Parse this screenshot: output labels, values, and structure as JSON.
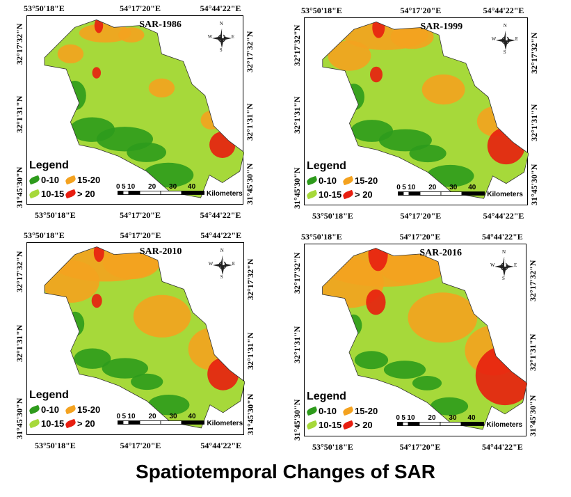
{
  "caption": "Spatiotemporal Changes of SAR",
  "coords": {
    "top_left": "53°50'18\"E",
    "top_mid": "54°17'20\"E",
    "top_right": "54°44'22\"E",
    "lat_top": "32°17'32\"N",
    "lat_mid": "32°1'31\"N",
    "lat_bot": "31°45'30\"N"
  },
  "legend": {
    "title": "Legend",
    "items": [
      {
        "label": "0-10",
        "color": "#2e9b1c"
      },
      {
        "label": "15-20",
        "color": "#f4a21f"
      },
      {
        "label": "10-15",
        "color": "#a6d93a"
      },
      {
        "label": "> 20",
        "color": "#e81e10"
      }
    ]
  },
  "scale": {
    "ticks": [
      "0",
      "5",
      "10",
      "20",
      "30",
      "40"
    ],
    "unit": "Kilometers"
  },
  "compass": {
    "n": "N",
    "s": "S",
    "e": "E",
    "w": "W"
  },
  "panels": [
    {
      "title": "SAR-1986"
    },
    {
      "title": "SAR-1999"
    },
    {
      "title": "SAR-2010"
    },
    {
      "title": "SAR-2016"
    }
  ]
}
